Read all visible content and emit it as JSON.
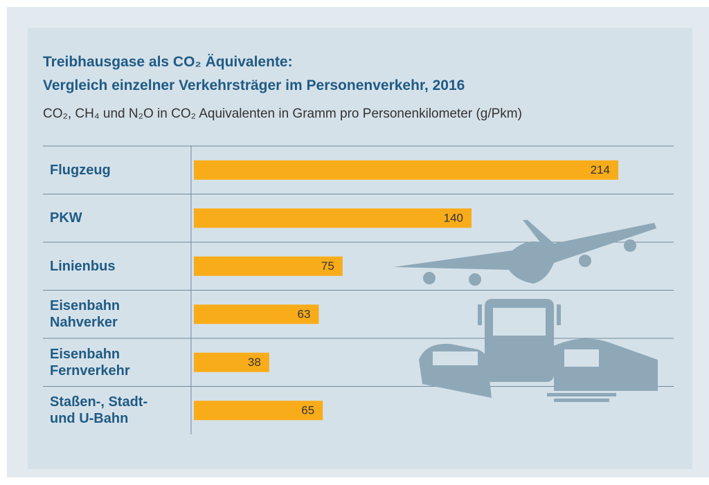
{
  "chart_data": {
    "type": "hbar",
    "title": [
      "Treibhausgase als CO₂ Äquivalente:",
      "Vergleich einzelner Verkehrsträger im Personenverkehr, 2016"
    ],
    "subtitle": "CO₂, CH₄ und N₂O in CO₂ Aquivalenten in Gramm pro Personenkilometer (g/Pkm)",
    "categories": [
      "Flugzeug",
      "PKW",
      "Linienbus",
      "Eisenbahn\nNahverker",
      "Eisenbahn\nFernverkehr",
      "Staßen-, Stadt-\nund U-Bahn"
    ],
    "values": [
      214,
      140,
      75,
      63,
      38,
      65
    ],
    "color": "#f9ac1a"
  }
}
